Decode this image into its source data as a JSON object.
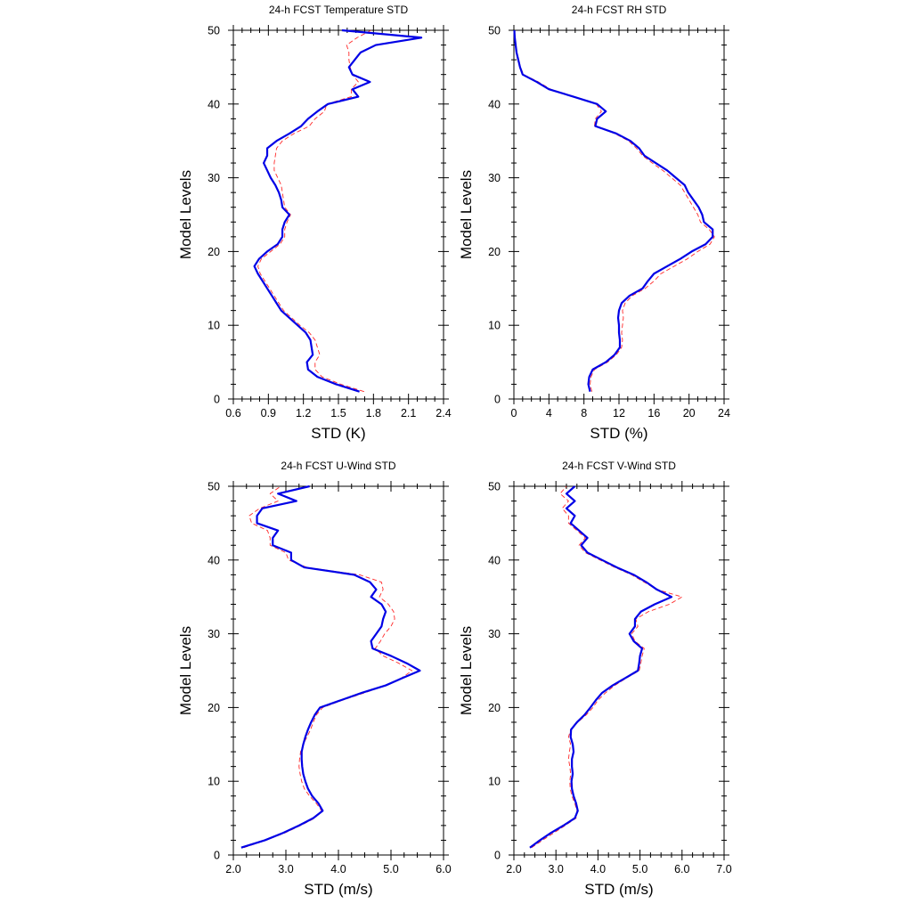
{
  "chart_data": [
    {
      "type": "line",
      "title": "24-h FCST Temperature STD",
      "xlabel": "STD (K)",
      "ylabel": "Model Levels",
      "xlim": [
        0.6,
        2.4
      ],
      "ylim": [
        0,
        50
      ],
      "xticks": [
        "0.6",
        "0.9",
        "1.2",
        "1.5",
        "1.8",
        "2.1",
        "2.4"
      ],
      "yticks": [
        "0",
        "10",
        "20",
        "30",
        "40",
        "50"
      ],
      "series": [
        {
          "color": "#0000e6",
          "style": "solid",
          "x": [
            1.68,
            1.48,
            1.32,
            1.24,
            1.23,
            1.28,
            1.27,
            1.26,
            1.22,
            1.15,
            1.08,
            1.01,
            0.97,
            0.93,
            0.89,
            0.85,
            0.81,
            0.78,
            0.82,
            0.89,
            0.98,
            1.02,
            1.02,
            1.04,
            1.08,
            1.02,
            1.01,
            0.99,
            0.96,
            0.92,
            0.89,
            0.86,
            0.89,
            0.89,
            0.97,
            1.08,
            1.18,
            1.24,
            1.32,
            1.41,
            1.67,
            1.62,
            1.77,
            1.62,
            1.59,
            1.64,
            1.69,
            1.82,
            2.21,
            1.53
          ],
          "y": [
            1,
            2,
            3,
            4,
            5,
            6,
            7,
            8,
            9,
            10,
            11,
            12,
            13,
            14,
            15,
            16,
            17,
            18,
            19,
            20,
            21,
            22,
            23,
            24,
            25,
            26,
            27,
            28,
            29,
            30,
            31,
            32,
            33,
            34,
            35,
            36,
            37,
            38,
            39,
            40,
            41,
            42,
            43,
            44,
            45,
            46,
            47,
            48,
            49,
            50
          ]
        },
        {
          "color": "#ff2a2a",
          "style": "dashed",
          "x": [
            1.72,
            1.52,
            1.36,
            1.3,
            1.3,
            1.34,
            1.32,
            1.3,
            1.25,
            1.17,
            1.1,
            1.03,
            0.99,
            0.95,
            0.91,
            0.87,
            0.83,
            0.81,
            0.84,
            0.92,
            1.0,
            1.04,
            1.04,
            1.06,
            1.09,
            1.04,
            1.03,
            1.02,
            1.01,
            0.98,
            0.95,
            0.95,
            0.96,
            0.97,
            1.02,
            1.12,
            1.25,
            1.3,
            1.38,
            1.4,
            1.61,
            1.61,
            1.67,
            1.62,
            1.6,
            1.59,
            1.59,
            1.57,
            1.66,
            1.78
          ],
          "y": [
            1,
            2,
            3,
            4,
            5,
            6,
            7,
            8,
            9,
            10,
            11,
            12,
            13,
            14,
            15,
            16,
            17,
            18,
            19,
            20,
            21,
            22,
            23,
            24,
            25,
            26,
            27,
            28,
            29,
            30,
            31,
            32,
            33,
            34,
            35,
            36,
            37,
            38,
            39,
            40,
            41,
            42,
            43,
            44,
            45,
            46,
            47,
            48,
            49,
            50
          ]
        }
      ]
    },
    {
      "type": "line",
      "title": "24-h FCST RH STD",
      "xlabel": "STD (%)",
      "ylabel": "Model Levels",
      "xlim": [
        0,
        24
      ],
      "ylim": [
        0,
        50
      ],
      "xticks": [
        "0",
        "4",
        "8",
        "12",
        "16",
        "20",
        "24"
      ],
      "yticks": [
        "0",
        "10",
        "20",
        "30",
        "40",
        "50"
      ],
      "series": [
        {
          "color": "#0000e6",
          "style": "solid",
          "x": [
            8.7,
            8.5,
            8.6,
            9.0,
            10.5,
            11.5,
            12.1,
            12.1,
            12.0,
            12.0,
            11.9,
            12.0,
            12.3,
            13.2,
            14.7,
            15.3,
            16.0,
            17.5,
            19.0,
            20.3,
            21.9,
            22.7,
            22.7,
            21.7,
            21.5,
            21.1,
            20.5,
            19.9,
            19.5,
            18.5,
            17.5,
            16.2,
            14.9,
            14.3,
            13.3,
            11.7,
            9.3,
            9.5,
            10.5,
            9.5,
            6.8,
            4.0,
            2.6,
            1.0,
            0.7,
            0.5,
            0.3,
            0.2,
            0.1,
            0.05
          ],
          "y": [
            1,
            2,
            3,
            4,
            5,
            6,
            7,
            8,
            9,
            10,
            11,
            12,
            13,
            14,
            15,
            16,
            17,
            18,
            19,
            20,
            21,
            22,
            23,
            24,
            25,
            26,
            27,
            28,
            29,
            30,
            31,
            32,
            33,
            34,
            35,
            36,
            37,
            38,
            39,
            40,
            41,
            42,
            43,
            44,
            45,
            46,
            47,
            48,
            49,
            50
          ]
        },
        {
          "color": "#ff2a2a",
          "style": "dashed",
          "x": [
            8.9,
            8.7,
            8.8,
            9.2,
            10.7,
            11.7,
            12.3,
            12.4,
            12.3,
            12.4,
            12.5,
            12.4,
            12.7,
            13.5,
            15.0,
            16.0,
            16.8,
            18.3,
            19.8,
            21.0,
            22.4,
            22.9,
            22.3,
            21.3,
            21.0,
            20.5,
            20.0,
            19.5,
            19.0,
            18.0,
            17.0,
            15.8,
            14.7,
            14.0,
            13.1,
            11.5,
            9.2,
            9.3,
            10.0,
            9.4,
            6.9,
            4.2,
            2.8,
            1.1,
            0.75,
            0.55,
            0.35,
            0.22,
            0.12,
            0.06
          ],
          "y": [
            1,
            2,
            3,
            4,
            5,
            6,
            7,
            8,
            9,
            10,
            11,
            12,
            13,
            14,
            15,
            16,
            17,
            18,
            19,
            20,
            21,
            22,
            23,
            24,
            25,
            26,
            27,
            28,
            29,
            30,
            31,
            32,
            33,
            34,
            35,
            36,
            37,
            38,
            39,
            40,
            41,
            42,
            43,
            44,
            45,
            46,
            47,
            48,
            49,
            50
          ]
        }
      ]
    },
    {
      "type": "line",
      "title": "24-h FCST U-Wind STD",
      "xlabel": "STD (m/s)",
      "ylabel": "Model Levels",
      "xlim": [
        2.0,
        6.0
      ],
      "ylim": [
        0,
        50
      ],
      "xticks": [
        "2.0",
        "3.0",
        "4.0",
        "5.0",
        "6.0"
      ],
      "yticks": [
        "0",
        "10",
        "20",
        "30",
        "40",
        "50"
      ],
      "series": [
        {
          "color": "#0000e6",
          "style": "solid",
          "x": [
            2.15,
            2.6,
            2.95,
            3.25,
            3.52,
            3.7,
            3.62,
            3.5,
            3.42,
            3.37,
            3.33,
            3.31,
            3.3,
            3.3,
            3.33,
            3.37,
            3.42,
            3.48,
            3.55,
            3.65,
            4.05,
            4.45,
            4.9,
            5.22,
            5.55,
            5.3,
            5.0,
            4.65,
            4.62,
            4.72,
            4.82,
            4.85,
            4.9,
            4.82,
            4.62,
            4.72,
            4.6,
            4.3,
            3.35,
            3.1,
            3.1,
            2.75,
            2.75,
            2.85,
            2.45,
            2.45,
            2.55,
            3.2,
            2.85,
            3.45
          ],
          "y": [
            1,
            2,
            3,
            4,
            5,
            6,
            7,
            8,
            9,
            10,
            11,
            12,
            13,
            14,
            15,
            16,
            17,
            18,
            19,
            20,
            21,
            22,
            23,
            24,
            25,
            26,
            27,
            28,
            29,
            30,
            31,
            32,
            33,
            34,
            35,
            36,
            37,
            38,
            39,
            40,
            41,
            42,
            43,
            44,
            45,
            46,
            47,
            48,
            49,
            50
          ]
        },
        {
          "color": "#ff2a2a",
          "style": "dashed",
          "x": [
            2.2,
            2.62,
            2.98,
            3.28,
            3.55,
            3.68,
            3.58,
            3.45,
            3.35,
            3.3,
            3.27,
            3.25,
            3.26,
            3.28,
            3.33,
            3.4,
            3.47,
            3.52,
            3.58,
            3.7,
            4.08,
            4.5,
            4.9,
            5.2,
            5.4,
            5.15,
            4.85,
            4.7,
            4.8,
            4.88,
            5.0,
            5.07,
            5.05,
            4.95,
            4.78,
            4.85,
            4.82,
            4.4,
            3.4,
            3.05,
            3.0,
            2.7,
            2.7,
            2.65,
            2.35,
            2.3,
            2.5,
            2.85,
            2.7,
            2.9
          ],
          "y": [
            1,
            2,
            3,
            4,
            5,
            6,
            7,
            8,
            9,
            10,
            11,
            12,
            13,
            14,
            15,
            16,
            17,
            18,
            19,
            20,
            21,
            22,
            23,
            24,
            25,
            26,
            27,
            28,
            29,
            30,
            31,
            32,
            33,
            34,
            35,
            36,
            37,
            38,
            39,
            40,
            41,
            42,
            43,
            44,
            45,
            46,
            47,
            48,
            49,
            50
          ]
        }
      ]
    },
    {
      "type": "line",
      "title": "24-h FCST V-Wind STD",
      "xlabel": "STD (m/s)",
      "ylabel": "Model Levels",
      "xlim": [
        2.0,
        7.0
      ],
      "ylim": [
        0,
        50
      ],
      "xticks": [
        "2.0",
        "3.0",
        "4.0",
        "5.0",
        "6.0",
        "7.0"
      ],
      "yticks": [
        "0",
        "10",
        "20",
        "30",
        "40",
        "50"
      ],
      "series": [
        {
          "color": "#0000e6",
          "style": "solid",
          "x": [
            2.38,
            2.62,
            2.88,
            3.18,
            3.45,
            3.52,
            3.48,
            3.42,
            3.38,
            3.37,
            3.4,
            3.38,
            3.38,
            3.42,
            3.4,
            3.35,
            3.36,
            3.5,
            3.68,
            3.82,
            3.95,
            4.1,
            4.35,
            4.65,
            4.95,
            4.98,
            5.0,
            5.05,
            4.85,
            4.75,
            4.88,
            4.88,
            5.02,
            5.35,
            5.75,
            5.4,
            5.15,
            4.85,
            4.45,
            4.1,
            3.75,
            3.6,
            3.75,
            3.55,
            3.35,
            3.45,
            3.25,
            3.45,
            3.25,
            3.45
          ],
          "y": [
            1,
            2,
            3,
            4,
            5,
            6,
            7,
            8,
            9,
            10,
            11,
            12,
            13,
            14,
            15,
            16,
            17,
            18,
            19,
            20,
            21,
            22,
            23,
            24,
            25,
            26,
            27,
            28,
            29,
            30,
            31,
            32,
            33,
            34,
            35,
            36,
            37,
            38,
            39,
            40,
            41,
            42,
            43,
            44,
            45,
            46,
            47,
            48,
            49,
            50
          ]
        },
        {
          "color": "#ff2a2a",
          "style": "dashed",
          "x": [
            2.42,
            2.68,
            2.95,
            3.22,
            3.48,
            3.5,
            3.45,
            3.38,
            3.34,
            3.33,
            3.35,
            3.33,
            3.3,
            3.32,
            3.35,
            3.3,
            3.35,
            3.52,
            3.72,
            3.88,
            4.0,
            4.18,
            4.4,
            4.68,
            4.98,
            5.02,
            5.05,
            5.1,
            4.88,
            4.8,
            4.95,
            4.9,
            5.2,
            5.7,
            6.0,
            5.4,
            5.1,
            4.8,
            4.4,
            4.05,
            3.7,
            3.55,
            3.7,
            3.5,
            3.3,
            3.3,
            3.15,
            3.3,
            3.1,
            3.25
          ],
          "y": [
            1,
            2,
            3,
            4,
            5,
            6,
            7,
            8,
            9,
            10,
            11,
            12,
            13,
            14,
            15,
            16,
            17,
            18,
            19,
            20,
            21,
            22,
            23,
            24,
            25,
            26,
            27,
            28,
            29,
            30,
            31,
            32,
            33,
            34,
            35,
            36,
            37,
            38,
            39,
            40,
            41,
            42,
            43,
            44,
            45,
            46,
            47,
            48,
            49,
            50
          ]
        }
      ]
    }
  ]
}
